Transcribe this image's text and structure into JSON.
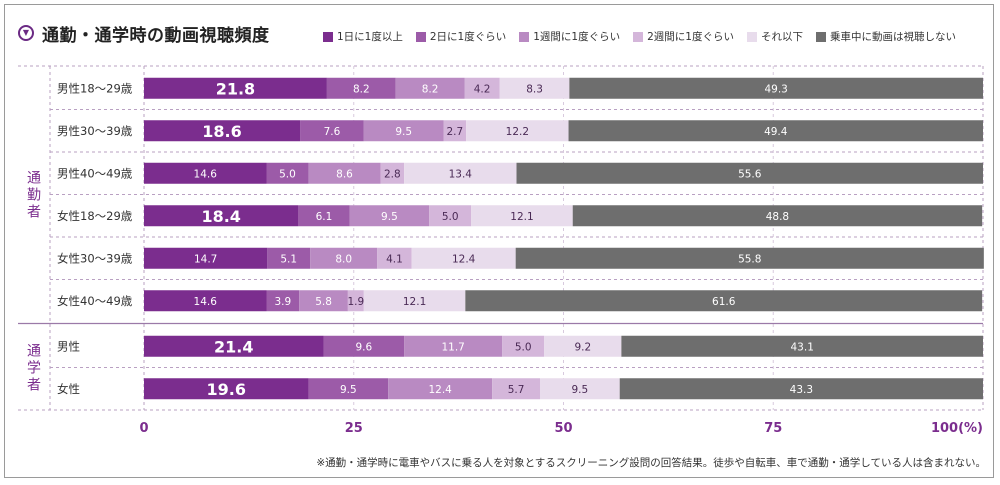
{
  "title": "通勤・通学時の動画視聴頻度",
  "title_icon": "chevron-down-icon",
  "footnote": "※通勤・通学時に電車やバスに乗る人を対象とするスクリーニング設問の回答結果。徒歩や自転車、車で通勤・通学している人は含まれない。",
  "chart_data": {
    "type": "bar",
    "orientation": "horizontal",
    "stacked": true,
    "title": "通勤・通学時の動画視聴頻度",
    "xlim": [
      0,
      100
    ],
    "x_ticks": [
      "0",
      "25",
      "50",
      "75",
      "100(%)"
    ],
    "legend_position": "top-right",
    "groups": [
      {
        "label": "通勤者",
        "start": 0,
        "count": 6
      },
      {
        "label": "通学者",
        "start": 6,
        "count": 2
      }
    ],
    "categories": [
      "男性18～29歳",
      "男性30～39歳",
      "男性40～49歳",
      "女性18～29歳",
      "女性30～39歳",
      "女性40～49歳",
      "男性",
      "女性"
    ],
    "series": [
      {
        "name": "1日に1度以上",
        "color": "#7b2d8e",
        "values": [
          21.8,
          18.6,
          14.6,
          18.4,
          14.7,
          14.6,
          21.4,
          19.6
        ]
      },
      {
        "name": "2日に1度ぐらい",
        "color": "#9c5ba8",
        "values": [
          8.2,
          7.6,
          5.0,
          6.1,
          5.1,
          3.9,
          9.6,
          9.5
        ]
      },
      {
        "name": "1週間に1度ぐらい",
        "color": "#b98ac2",
        "values": [
          8.2,
          9.5,
          8.6,
          9.5,
          8.0,
          5.8,
          11.7,
          12.4
        ]
      },
      {
        "name": "2週間に1度ぐらい",
        "color": "#d4b6da",
        "values": [
          4.2,
          2.7,
          2.8,
          5.0,
          4.1,
          1.9,
          5.0,
          5.7
        ]
      },
      {
        "name": "それ以下",
        "color": "#e8dcec",
        "values": [
          8.3,
          12.2,
          13.4,
          12.1,
          12.4,
          12.1,
          9.2,
          9.5
        ]
      },
      {
        "name": "乗車中に動画は視聴しない",
        "color": "#6e6e6e",
        "values": [
          49.3,
          49.4,
          55.6,
          48.8,
          55.8,
          61.6,
          43.1,
          43.3
        ]
      }
    ],
    "large_label_values": [
      21.8,
      18.6,
      18.4,
      21.4,
      19.6
    ]
  }
}
